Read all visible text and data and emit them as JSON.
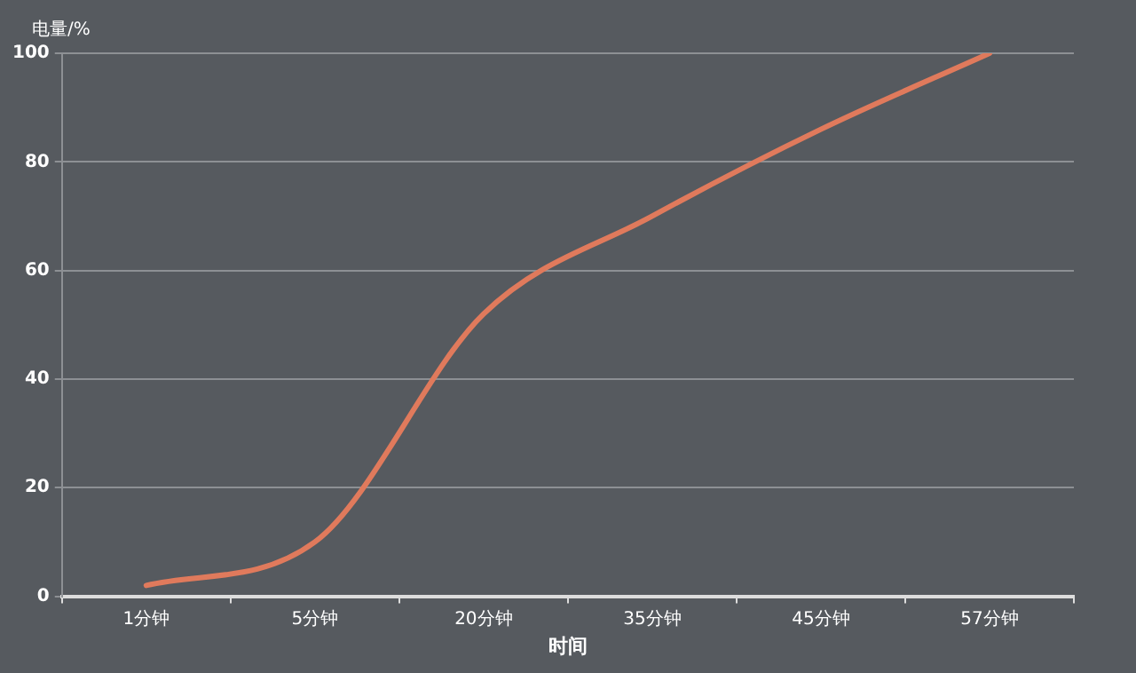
{
  "chart_data": {
    "type": "line",
    "xlabel": "时间",
    "ylabel": "电量/%",
    "categories": [
      "1分钟",
      "5分钟",
      "20分钟",
      "35分钟",
      "45分钟",
      "57分钟"
    ],
    "series": [
      {
        "color": "#e07a5c",
        "values": [
          2,
          10,
          52,
          70,
          86,
          100
        ]
      }
    ],
    "ylim": [
      0,
      100
    ],
    "yticks": [
      0,
      20,
      40,
      60,
      80,
      100
    ],
    "grid": "y",
    "legend": false,
    "marker": "none",
    "line_style": "solid"
  }
}
